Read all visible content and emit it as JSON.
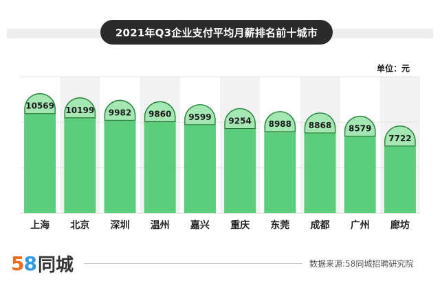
{
  "header": {
    "title": "2021年Q3企业支付平均月薪排名前十城市",
    "unit": "单位：元"
  },
  "chart_data": {
    "type": "bar",
    "title": "2021年Q3企业支付平均月薪排名前十城市",
    "categories": [
      "上海",
      "北京",
      "深圳",
      "温州",
      "嘉兴",
      "重庆",
      "东莞",
      "成都",
      "广州",
      "廊坊"
    ],
    "values": [
      10569,
      10199,
      9982,
      9860,
      9599,
      9254,
      8988,
      8868,
      8579,
      7722
    ],
    "ylabel": "单位：元",
    "ylim": [
      0,
      12000
    ],
    "grid": true,
    "colors": {
      "bar": "#5ccd7b",
      "cap": "#a4e7b2",
      "cap_stroke": "#2a7a3c",
      "stripe": "#f2f2f2"
    }
  },
  "footer": {
    "logo_num_5": "5",
    "logo_num_8": "8",
    "logo_text": "同城",
    "source": "数据来源:58同城招聘研究院"
  }
}
